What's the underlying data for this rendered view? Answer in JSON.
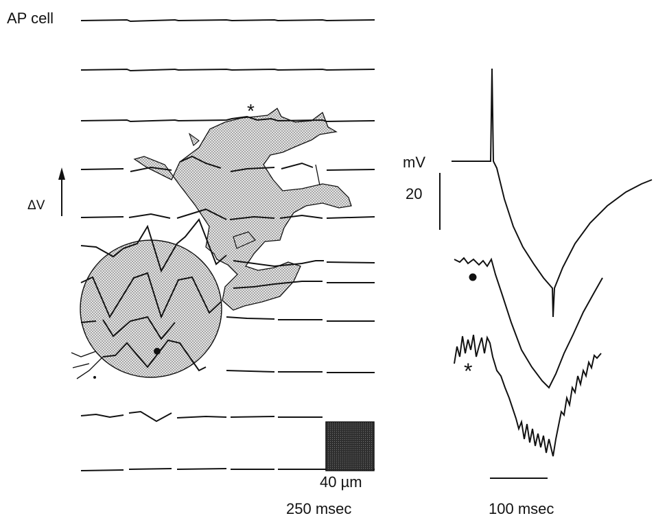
{
  "figure": {
    "cell_label": "AP cell",
    "delta_v_label": "ΔV",
    "voltage_unit": "mV",
    "voltage_scale_value": "20",
    "spatial_scale_label": "40 µm",
    "left_time_scale_label": "250 msec",
    "right_time_scale_label": "100 msec",
    "marker_asterisk": "*",
    "marker_dot": "•"
  },
  "colors": {
    "ink": "#111111",
    "stipple_fill": "#c8c8c8",
    "scale_square": "#333333"
  }
}
